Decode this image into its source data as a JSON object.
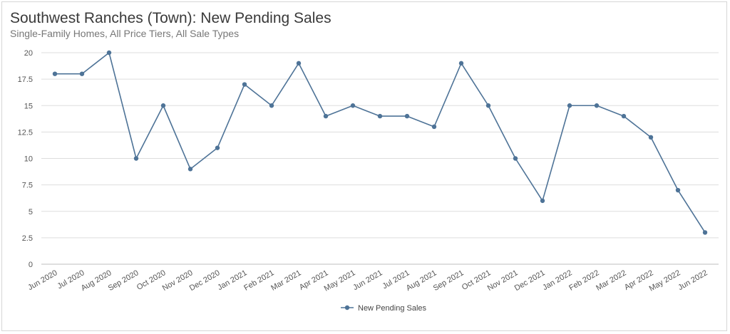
{
  "title": "Southwest Ranches (Town): New Pending Sales",
  "subtitle": "Single-Family Homes, All Price Tiers, All Sale Types",
  "chart_data": {
    "type": "line",
    "categories": [
      "Jun 2020",
      "Jul 2020",
      "Aug 2020",
      "Sep 2020",
      "Oct 2020",
      "Nov 2020",
      "Dec 2020",
      "Jan 2021",
      "Feb 2021",
      "Mar 2021",
      "Apr 2021",
      "May 2021",
      "Jun 2021",
      "Jul 2021",
      "Aug 2021",
      "Sep 2021",
      "Oct 2021",
      "Nov 2021",
      "Dec 2021",
      "Jan 2022",
      "Feb 2022",
      "Mar 2022",
      "Apr 2022",
      "May 2022",
      "Jun 2022"
    ],
    "series": [
      {
        "name": "New Pending Sales",
        "color": "#4e7397",
        "values": [
          18,
          18,
          20,
          10,
          15,
          9,
          11,
          17,
          15,
          19,
          14,
          15,
          14,
          14,
          13,
          19,
          15,
          10,
          6,
          15,
          15,
          14,
          12,
          7,
          3
        ]
      }
    ],
    "yticks": [
      "0",
      "2.5",
      "5",
      "7.5",
      "10",
      "12.5",
      "15",
      "17.5",
      "20"
    ],
    "ylim": [
      0,
      20
    ],
    "grid": true,
    "legend_position": "bottom-center"
  }
}
